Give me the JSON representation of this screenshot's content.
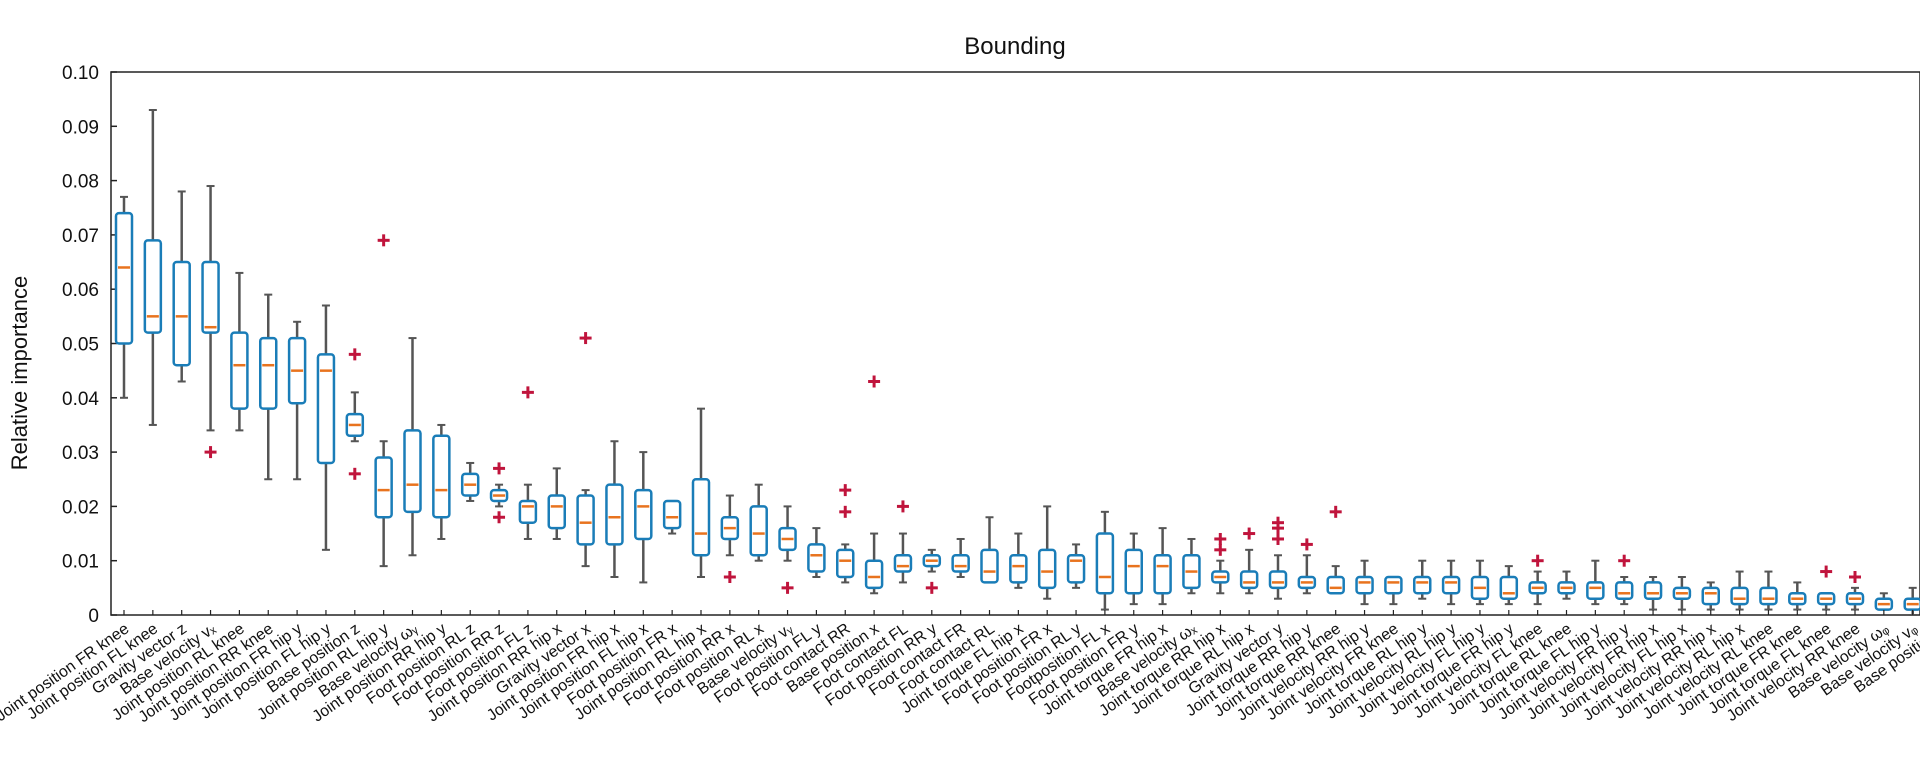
{
  "chart_data": {
    "type": "boxplot",
    "title": "Bounding",
    "xlabel": "",
    "ylabel": "Relative importance",
    "ylim": [
      0,
      0.1
    ],
    "yticks": [
      "0",
      "0.01",
      "0.02",
      "0.03",
      "0.04",
      "0.05",
      "0.06",
      "0.07",
      "0.08",
      "0.09",
      "0.10"
    ],
    "grid": false,
    "colors": {
      "box": "#1a7db8",
      "median": "#e8731e",
      "whisker": "#555555",
      "outlier": "#c0143c"
    },
    "categories": [
      "Joint position FR knee",
      "Joint position FL knee",
      "Gravity vector z",
      "Base velocity vₓ",
      "Joint position RL knee",
      "Joint position RR knee",
      "Joint position FR hip y",
      "Joint position FL hip y",
      "Base position z",
      "Joint position RL hip y",
      "Base velocity ωᵧ",
      "Joint position RR hip y",
      "Foot position RL z",
      "Foot position RR z",
      "Foot position FL z",
      "Joint position RR hip x",
      "Gravity vector x",
      "Joint position FR hip x",
      "Joint position FL hip x",
      "Foot position FR x",
      "Joint position RL hip x",
      "Foot position RR x",
      "Foot position RL x",
      "Base velocity vᵧ",
      "Foot position FL y",
      "Foot contact RR",
      "Base position x",
      "Foot contact FL",
      "Foot position RR y",
      "Foot contact FR",
      "Foot contact RL",
      "Joint torque FL hip x",
      "Foot position FR x",
      "Foot position RL y",
      "Footposition FL x",
      "Foot position FR y",
      "Joint torque FR hip x",
      "Base velocity ωₓ",
      "Joint torque RR hip x",
      "Joint torque RL hip x",
      "Gravity vector y",
      "Joint torque RR hip y",
      "Joint torque RR knee",
      "Joint velocity RR hip y",
      "Joint velocity FR knee",
      "Joint torque RL hip y",
      "Joint velocity RL hip y",
      "Joint velocity FL hip y",
      "Joint torque FR hip y",
      "Joint velocity FL knee",
      "Joint torque RL knee",
      "Joint torque FL hip y",
      "Joint velocity FR hip y",
      "Joint velocity FR hip x",
      "Joint velocity FL hip x",
      "Joint velocity RR hip x",
      "Joint velocity RL hip x",
      "Joint velocity RL knee",
      "Joint torque FR knee",
      "Joint torque FL knee",
      "Joint velocity RR knee",
      "Base velocity ωᵩ",
      "Base velocity vᵩ",
      "Base position y"
    ],
    "boxes": [
      {
        "q1": 0.05,
        "median": 0.064,
        "q3": 0.074,
        "wlo": 0.04,
        "whi": 0.077,
        "outliers": []
      },
      {
        "q1": 0.052,
        "median": 0.055,
        "q3": 0.069,
        "wlo": 0.035,
        "whi": 0.093,
        "outliers": []
      },
      {
        "q1": 0.046,
        "median": 0.055,
        "q3": 0.065,
        "wlo": 0.043,
        "whi": 0.078,
        "outliers": []
      },
      {
        "q1": 0.052,
        "median": 0.053,
        "q3": 0.065,
        "wlo": 0.034,
        "whi": 0.079,
        "outliers": [
          0.03
        ]
      },
      {
        "q1": 0.038,
        "median": 0.046,
        "q3": 0.052,
        "wlo": 0.034,
        "whi": 0.063,
        "outliers": []
      },
      {
        "q1": 0.038,
        "median": 0.046,
        "q3": 0.051,
        "wlo": 0.025,
        "whi": 0.059,
        "outliers": []
      },
      {
        "q1": 0.039,
        "median": 0.045,
        "q3": 0.051,
        "wlo": 0.025,
        "whi": 0.054,
        "outliers": []
      },
      {
        "q1": 0.028,
        "median": 0.045,
        "q3": 0.048,
        "wlo": 0.012,
        "whi": 0.057,
        "outliers": []
      },
      {
        "q1": 0.033,
        "median": 0.035,
        "q3": 0.037,
        "wlo": 0.032,
        "whi": 0.041,
        "outliers": [
          0.048,
          0.026
        ]
      },
      {
        "q1": 0.018,
        "median": 0.023,
        "q3": 0.029,
        "wlo": 0.009,
        "whi": 0.032,
        "outliers": [
          0.069
        ]
      },
      {
        "q1": 0.019,
        "median": 0.024,
        "q3": 0.034,
        "wlo": 0.011,
        "whi": 0.051,
        "outliers": []
      },
      {
        "q1": 0.018,
        "median": 0.023,
        "q3": 0.033,
        "wlo": 0.014,
        "whi": 0.035,
        "outliers": []
      },
      {
        "q1": 0.022,
        "median": 0.024,
        "q3": 0.026,
        "wlo": 0.021,
        "whi": 0.028,
        "outliers": []
      },
      {
        "q1": 0.021,
        "median": 0.022,
        "q3": 0.023,
        "wlo": 0.02,
        "whi": 0.024,
        "outliers": [
          0.027,
          0.018
        ]
      },
      {
        "q1": 0.017,
        "median": 0.02,
        "q3": 0.021,
        "wlo": 0.014,
        "whi": 0.024,
        "outliers": [
          0.041
        ]
      },
      {
        "q1": 0.016,
        "median": 0.02,
        "q3": 0.022,
        "wlo": 0.014,
        "whi": 0.027,
        "outliers": []
      },
      {
        "q1": 0.013,
        "median": 0.017,
        "q3": 0.022,
        "wlo": 0.009,
        "whi": 0.023,
        "outliers": [
          0.051
        ]
      },
      {
        "q1": 0.013,
        "median": 0.018,
        "q3": 0.024,
        "wlo": 0.007,
        "whi": 0.032,
        "outliers": []
      },
      {
        "q1": 0.014,
        "median": 0.02,
        "q3": 0.023,
        "wlo": 0.006,
        "whi": 0.03,
        "outliers": []
      },
      {
        "q1": 0.016,
        "median": 0.018,
        "q3": 0.021,
        "wlo": 0.015,
        "whi": 0.021,
        "outliers": []
      },
      {
        "q1": 0.011,
        "median": 0.015,
        "q3": 0.025,
        "wlo": 0.007,
        "whi": 0.038,
        "outliers": []
      },
      {
        "q1": 0.014,
        "median": 0.016,
        "q3": 0.018,
        "wlo": 0.011,
        "whi": 0.022,
        "outliers": [
          0.007
        ]
      },
      {
        "q1": 0.011,
        "median": 0.015,
        "q3": 0.02,
        "wlo": 0.01,
        "whi": 0.024,
        "outliers": []
      },
      {
        "q1": 0.012,
        "median": 0.014,
        "q3": 0.016,
        "wlo": 0.01,
        "whi": 0.02,
        "outliers": [
          0.005
        ]
      },
      {
        "q1": 0.008,
        "median": 0.011,
        "q3": 0.013,
        "wlo": 0.007,
        "whi": 0.016,
        "outliers": []
      },
      {
        "q1": 0.007,
        "median": 0.01,
        "q3": 0.012,
        "wlo": 0.006,
        "whi": 0.013,
        "outliers": [
          0.023,
          0.019
        ]
      },
      {
        "q1": 0.005,
        "median": 0.007,
        "q3": 0.01,
        "wlo": 0.004,
        "whi": 0.015,
        "outliers": [
          0.043
        ]
      },
      {
        "q1": 0.008,
        "median": 0.009,
        "q3": 0.011,
        "wlo": 0.006,
        "whi": 0.015,
        "outliers": [
          0.02
        ]
      },
      {
        "q1": 0.009,
        "median": 0.01,
        "q3": 0.011,
        "wlo": 0.008,
        "whi": 0.012,
        "outliers": [
          0.005
        ]
      },
      {
        "q1": 0.008,
        "median": 0.009,
        "q3": 0.011,
        "wlo": 0.007,
        "whi": 0.014,
        "outliers": []
      },
      {
        "q1": 0.006,
        "median": 0.008,
        "q3": 0.012,
        "wlo": 0.006,
        "whi": 0.018,
        "outliers": []
      },
      {
        "q1": 0.006,
        "median": 0.009,
        "q3": 0.011,
        "wlo": 0.005,
        "whi": 0.015,
        "outliers": []
      },
      {
        "q1": 0.005,
        "median": 0.008,
        "q3": 0.012,
        "wlo": 0.003,
        "whi": 0.02,
        "outliers": []
      },
      {
        "q1": 0.006,
        "median": 0.01,
        "q3": 0.011,
        "wlo": 0.005,
        "whi": 0.013,
        "outliers": []
      },
      {
        "q1": 0.004,
        "median": 0.007,
        "q3": 0.015,
        "wlo": 0.001,
        "whi": 0.019,
        "outliers": []
      },
      {
        "q1": 0.004,
        "median": 0.009,
        "q3": 0.012,
        "wlo": 0.002,
        "whi": 0.015,
        "outliers": []
      },
      {
        "q1": 0.004,
        "median": 0.009,
        "q3": 0.011,
        "wlo": 0.002,
        "whi": 0.016,
        "outliers": []
      },
      {
        "q1": 0.005,
        "median": 0.008,
        "q3": 0.011,
        "wlo": 0.004,
        "whi": 0.014,
        "outliers": []
      },
      {
        "q1": 0.006,
        "median": 0.007,
        "q3": 0.008,
        "wlo": 0.004,
        "whi": 0.01,
        "outliers": [
          0.014,
          0.012
        ]
      },
      {
        "q1": 0.005,
        "median": 0.006,
        "q3": 0.008,
        "wlo": 0.004,
        "whi": 0.012,
        "outliers": [
          0.015
        ]
      },
      {
        "q1": 0.005,
        "median": 0.006,
        "q3": 0.008,
        "wlo": 0.003,
        "whi": 0.011,
        "outliers": [
          0.017,
          0.016,
          0.014
        ]
      },
      {
        "q1": 0.005,
        "median": 0.006,
        "q3": 0.007,
        "wlo": 0.004,
        "whi": 0.011,
        "outliers": [
          0.013
        ]
      },
      {
        "q1": 0.004,
        "median": 0.005,
        "q3": 0.007,
        "wlo": 0.004,
        "whi": 0.009,
        "outliers": [
          0.019
        ]
      },
      {
        "q1": 0.004,
        "median": 0.006,
        "q3": 0.007,
        "wlo": 0.002,
        "whi": 0.01,
        "outliers": []
      },
      {
        "q1": 0.004,
        "median": 0.006,
        "q3": 0.007,
        "wlo": 0.002,
        "whi": 0.007,
        "outliers": []
      },
      {
        "q1": 0.004,
        "median": 0.006,
        "q3": 0.007,
        "wlo": 0.003,
        "whi": 0.01,
        "outliers": []
      },
      {
        "q1": 0.004,
        "median": 0.006,
        "q3": 0.007,
        "wlo": 0.002,
        "whi": 0.01,
        "outliers": []
      },
      {
        "q1": 0.003,
        "median": 0.005,
        "q3": 0.007,
        "wlo": 0.002,
        "whi": 0.01,
        "outliers": []
      },
      {
        "q1": 0.003,
        "median": 0.004,
        "q3": 0.007,
        "wlo": 0.002,
        "whi": 0.009,
        "outliers": []
      },
      {
        "q1": 0.004,
        "median": 0.005,
        "q3": 0.006,
        "wlo": 0.002,
        "whi": 0.008,
        "outliers": [
          0.01
        ]
      },
      {
        "q1": 0.004,
        "median": 0.005,
        "q3": 0.006,
        "wlo": 0.003,
        "whi": 0.008,
        "outliers": []
      },
      {
        "q1": 0.003,
        "median": 0.005,
        "q3": 0.006,
        "wlo": 0.002,
        "whi": 0.01,
        "outliers": []
      },
      {
        "q1": 0.003,
        "median": 0.004,
        "q3": 0.006,
        "wlo": 0.002,
        "whi": 0.007,
        "outliers": [
          0.01
        ]
      },
      {
        "q1": 0.003,
        "median": 0.004,
        "q3": 0.006,
        "wlo": 0.001,
        "whi": 0.007,
        "outliers": []
      },
      {
        "q1": 0.003,
        "median": 0.004,
        "q3": 0.005,
        "wlo": 0.001,
        "whi": 0.007,
        "outliers": []
      },
      {
        "q1": 0.002,
        "median": 0.004,
        "q3": 0.005,
        "wlo": 0.001,
        "whi": 0.006,
        "outliers": []
      },
      {
        "q1": 0.002,
        "median": 0.003,
        "q3": 0.005,
        "wlo": 0.001,
        "whi": 0.008,
        "outliers": []
      },
      {
        "q1": 0.002,
        "median": 0.003,
        "q3": 0.005,
        "wlo": 0.001,
        "whi": 0.008,
        "outliers": []
      },
      {
        "q1": 0.002,
        "median": 0.003,
        "q3": 0.004,
        "wlo": 0.001,
        "whi": 0.006,
        "outliers": []
      },
      {
        "q1": 0.002,
        "median": 0.003,
        "q3": 0.004,
        "wlo": 0.001,
        "whi": 0.004,
        "outliers": [
          0.008
        ]
      },
      {
        "q1": 0.002,
        "median": 0.003,
        "q3": 0.004,
        "wlo": 0.001,
        "whi": 0.005,
        "outliers": [
          0.007
        ]
      },
      {
        "q1": 0.001,
        "median": 0.002,
        "q3": 0.003,
        "wlo": 0.001,
        "whi": 0.004,
        "outliers": []
      },
      {
        "q1": 0.001,
        "median": 0.002,
        "q3": 0.003,
        "wlo": 0.0,
        "whi": 0.005,
        "outliers": []
      },
      {
        "q1": 0.001,
        "median": 0.002,
        "q3": 0.003,
        "wlo": 0.0,
        "whi": 0.004,
        "outliers": [
          0.005
        ]
      }
    ]
  }
}
